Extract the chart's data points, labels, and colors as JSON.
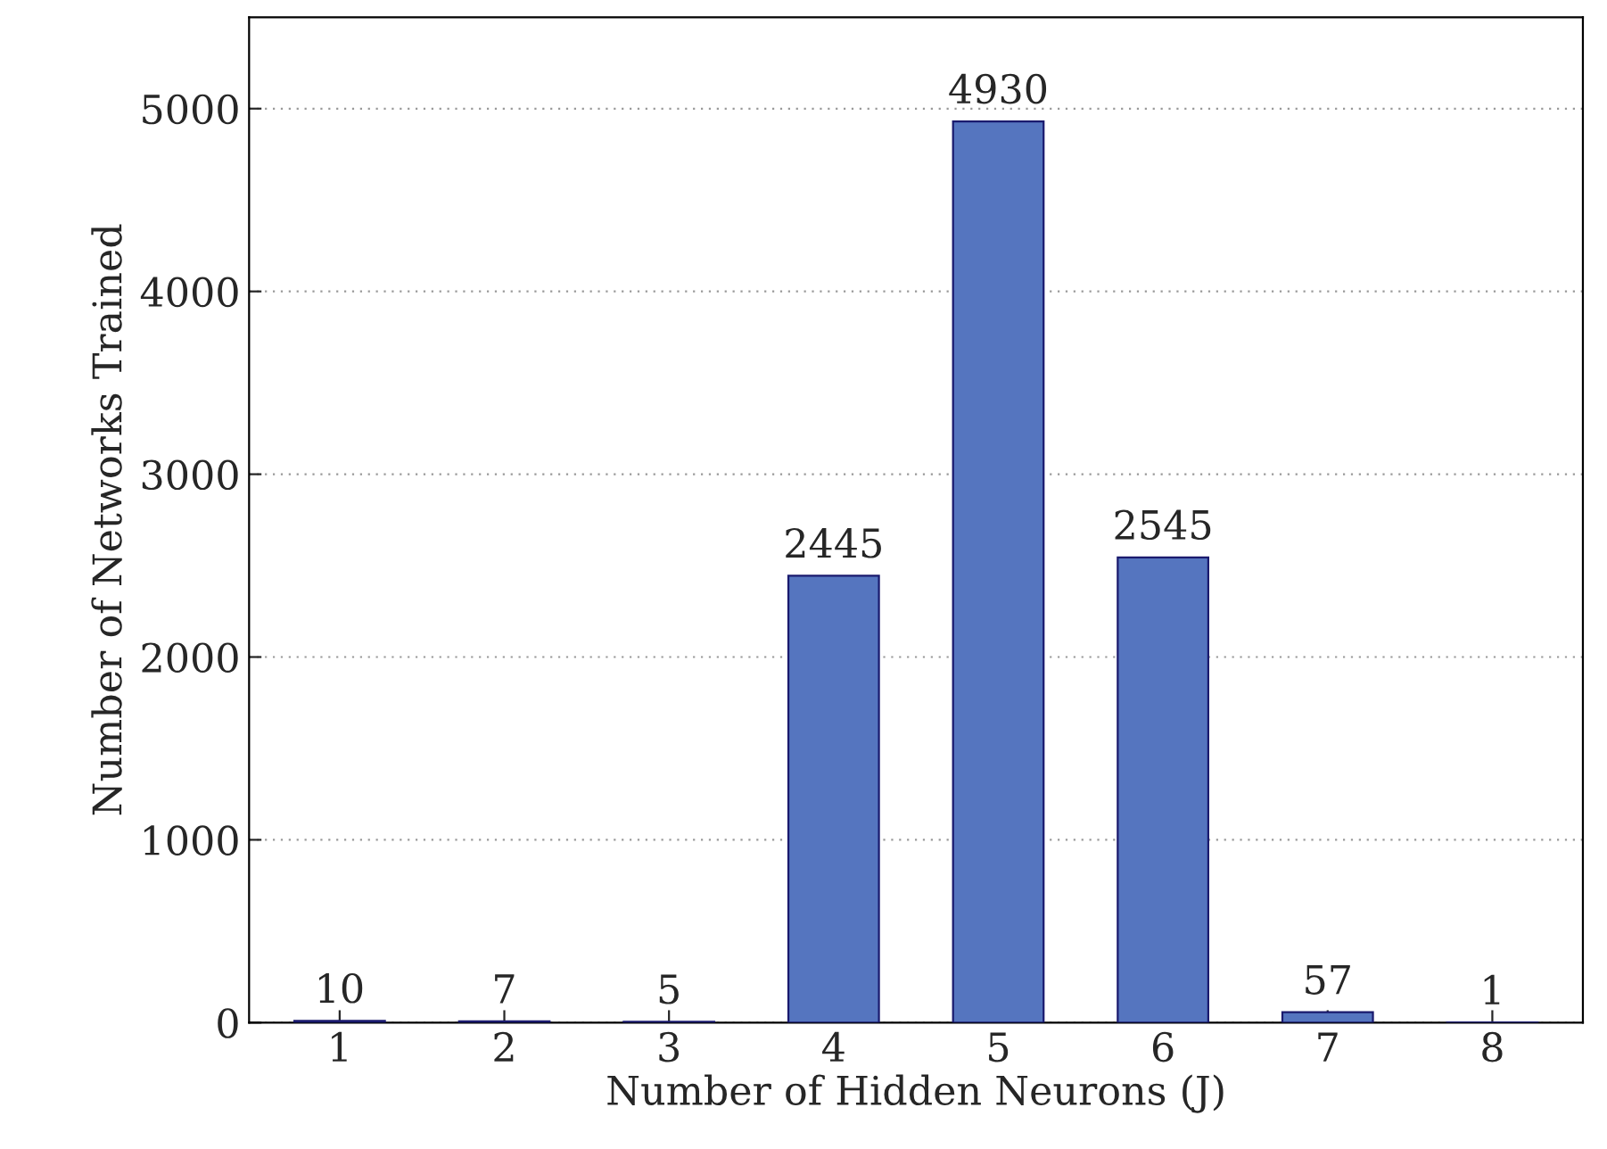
{
  "chart_data": {
    "type": "bar",
    "xlabel": "Number of Hidden Neurons (J)",
    "ylabel": "Number of Networks Trained",
    "categories": [
      "1",
      "2",
      "3",
      "4",
      "5",
      "6",
      "7",
      "8"
    ],
    "values": [
      10,
      7,
      5,
      2445,
      4930,
      2545,
      57,
      1
    ],
    "color": "#5575bf",
    "ylim": [
      0,
      5500
    ],
    "yticks": [
      0,
      1000,
      2000,
      3000,
      4000,
      5000
    ],
    "grid": "y",
    "data_labels": true
  }
}
